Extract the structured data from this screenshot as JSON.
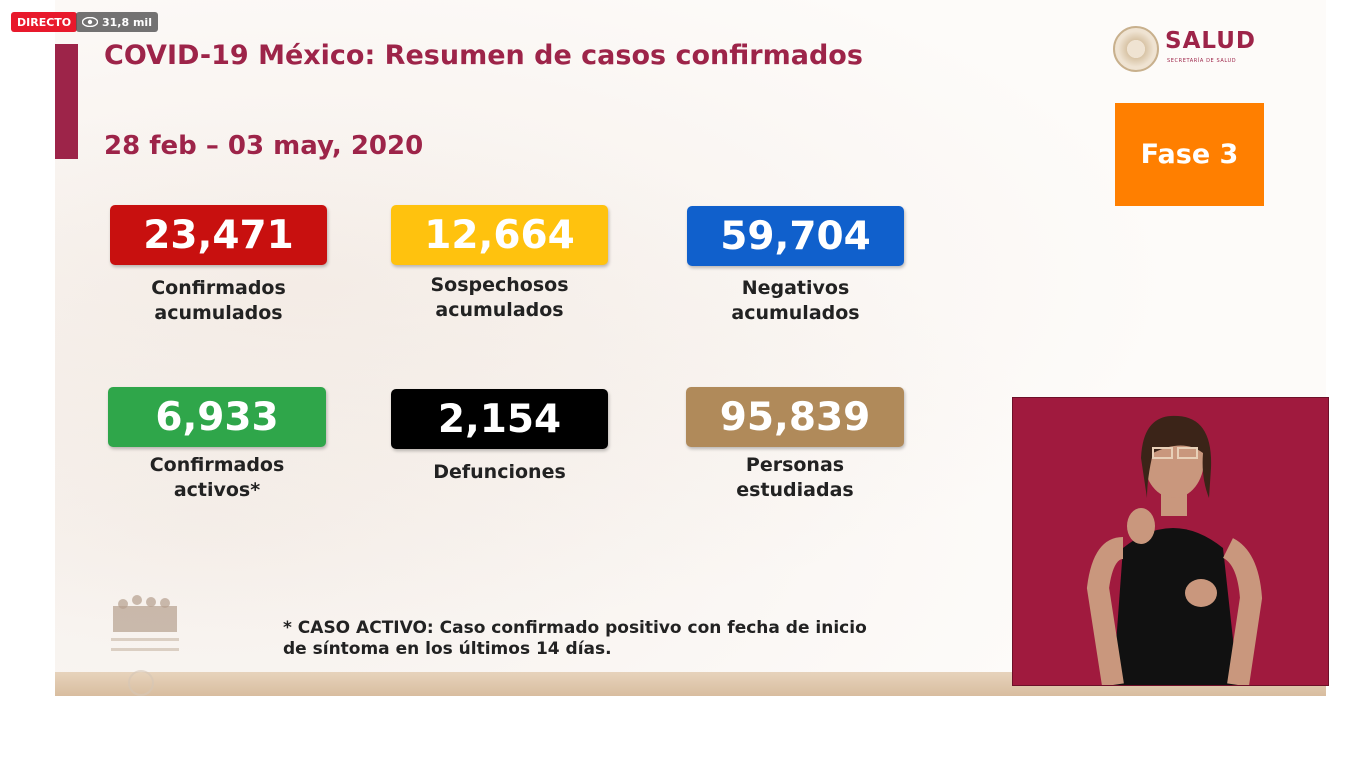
{
  "stream": {
    "live_label": "DIRECTO",
    "viewer_count": "31,8 mil"
  },
  "slide": {
    "title": "COVID-19 México: Resumen de casos confirmados",
    "date_range": "28 feb – 03 may, 2020",
    "logo": {
      "name": "SALUD",
      "subtitle": "SECRETARÍA DE SALUD"
    },
    "phase": "Fase 3",
    "stats": [
      {
        "value": "23,471",
        "label_line1": "Confirmados",
        "label_line2": "acumulados",
        "color": "#c8100f"
      },
      {
        "value": "12,664",
        "label_line1": "Sospechosos",
        "label_line2": "acumulados",
        "color": "#ffc20e"
      },
      {
        "value": "59,704",
        "label_line1": "Negativos",
        "label_line2": "acumulados",
        "color": "#1060cc"
      },
      {
        "value": "6,933",
        "label_line1": "Confirmados",
        "label_line2": "activos*",
        "color": "#2fa64a"
      },
      {
        "value": "2,154",
        "label_line1": "Defunciones",
        "label_line2": "",
        "color": "#000000"
      },
      {
        "value": "95,839",
        "label_line1": "Personas",
        "label_line2": "estudiadas",
        "color": "#b08a5a"
      }
    ],
    "footnote_line1": "* CASO ACTIVO: Caso confirmado positivo con fecha de inicio",
    "footnote_line2": "de síntoma en los últimos 14 días."
  },
  "colors": {
    "brand": "#9d2449",
    "phase": "#ff7f00",
    "interpreter_bg": "#a01a3e"
  }
}
